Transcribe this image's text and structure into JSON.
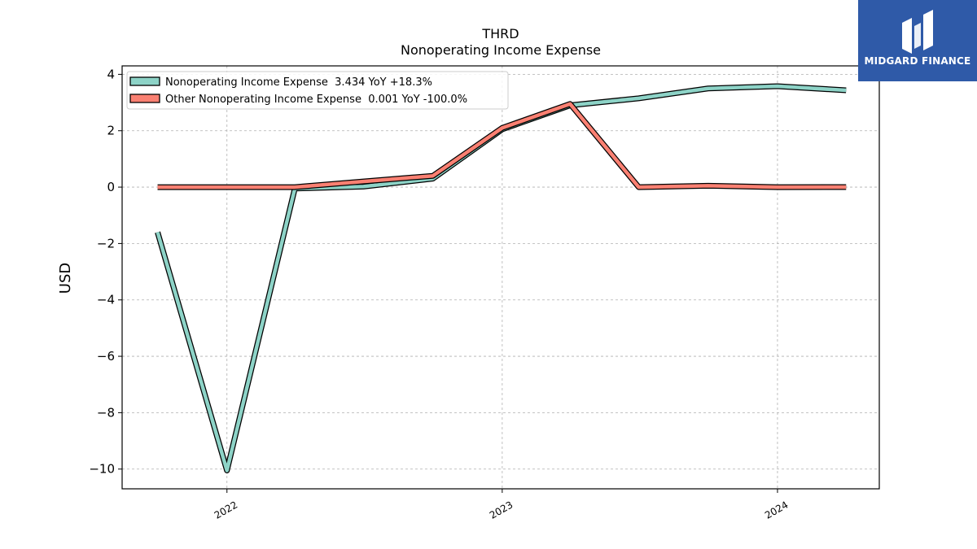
{
  "chart_data": {
    "type": "line",
    "title": "THRD",
    "subtitle": "Nonoperating Income Expense",
    "xlabel": "",
    "ylabel": "USD",
    "x": [
      "2021-10-01",
      "2022-01-01",
      "2022-04-01",
      "2022-07-01",
      "2022-10-01",
      "2023-01-01",
      "2023-04-01",
      "2023-07-01",
      "2023-10-01",
      "2024-01-01",
      "2024-04-01"
    ],
    "xlim": [
      "2021-08-15",
      "2024-05-15"
    ],
    "ylim": [
      -10.7,
      4.3
    ],
    "yticks": [
      4,
      2,
      0,
      -2,
      -4,
      -6,
      -8,
      -10
    ],
    "ytick_labels": [
      "4",
      "2",
      "0",
      "−2",
      "−4",
      "−6",
      "−8",
      "−10"
    ],
    "xticks": [
      "2022-01-01",
      "2023-01-01",
      "2024-01-01"
    ],
    "xtick_labels": [
      "2022",
      "2023",
      "2024"
    ],
    "grid": true,
    "legend_position": "upper-left",
    "series": [
      {
        "name": "Nonoperating Income Expense  3.434 YoY +18.3%",
        "color": "#8dd3c7",
        "values": [
          -1.6,
          -10.05,
          -0.05,
          0.02,
          0.3,
          2.05,
          2.9,
          3.15,
          3.5,
          3.58,
          3.434
        ]
      },
      {
        "name": "Other Nonoperating Income Expense  0.001 YoY -100.0%",
        "color": "#fa8072",
        "values": [
          0.0,
          0.0,
          0.0,
          0.2,
          0.4,
          2.1,
          2.95,
          0.0,
          0.05,
          0.0,
          0.001
        ]
      }
    ]
  },
  "logo": {
    "text": "MIDGARD FINANCE",
    "background": "#2f5aa8",
    "icon": "midgard-logo-icon"
  }
}
